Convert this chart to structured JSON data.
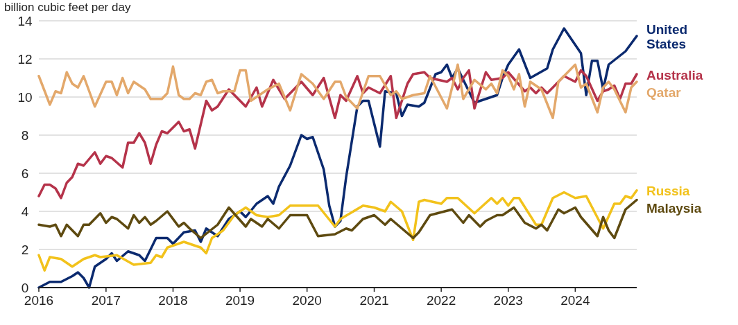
{
  "chart_data": {
    "type": "line",
    "ylabel": "billion cubic feet per day",
    "xlim": [
      "2016-01",
      "2024-12"
    ],
    "xticks": [
      "2016",
      "2017",
      "2018",
      "2019",
      "2020",
      "2021",
      "2022",
      "2023",
      "2024"
    ],
    "ylim": [
      0,
      14
    ],
    "yticks": [
      0,
      2,
      4,
      6,
      8,
      10,
      12,
      14
    ],
    "grid": "y",
    "legend": "right",
    "marker": "none",
    "line_style": "solid",
    "series": [
      {
        "name": "United States",
        "color": "#0b2a6f",
        "x": [
          "2016-01",
          "2016-03",
          "2016-05",
          "2016-07",
          "2016-08",
          "2016-09",
          "2016-10",
          "2016-11",
          "2017-01",
          "2017-02",
          "2017-03",
          "2017-05",
          "2017-07",
          "2017-08",
          "2017-10",
          "2017-12",
          "2018-01",
          "2018-03",
          "2018-05",
          "2018-06",
          "2018-07",
          "2018-09",
          "2018-11",
          "2019-01",
          "2019-02",
          "2019-04",
          "2019-06",
          "2019-07",
          "2019-08",
          "2019-10",
          "2019-12",
          "2020-01",
          "2020-02",
          "2020-04",
          "2020-05",
          "2020-06",
          "2020-07",
          "2020-08",
          "2020-10",
          "2020-11",
          "2020-12",
          "2021-02",
          "2021-03",
          "2021-05",
          "2021-06",
          "2021-07",
          "2021-09",
          "2021-10",
          "2021-12",
          "2022-01",
          "2022-02",
          "2022-03",
          "2022-04",
          "2022-07",
          "2022-11",
          "2022-12",
          "2023-01",
          "2023-03",
          "2023-05",
          "2023-08",
          "2023-09",
          "2023-11",
          "2024-02",
          "2024-03",
          "2024-04",
          "2024-05",
          "2024-06",
          "2024-07",
          "2024-10",
          "2024-12"
        ],
        "values": [
          0,
          0.3,
          0.3,
          0.6,
          0.8,
          0.5,
          0,
          1.1,
          1.5,
          1.8,
          1.4,
          1.9,
          1.7,
          1.4,
          2.6,
          2.6,
          2.3,
          2.9,
          3.0,
          2.4,
          3.1,
          2.7,
          3.6,
          4.0,
          3.7,
          4.4,
          4.8,
          4.4,
          5.3,
          6.4,
          8.0,
          7.8,
          7.9,
          6.2,
          4.3,
          3.2,
          3.5,
          5.8,
          9.5,
          9.8,
          9.8,
          7.4,
          10.3,
          10.2,
          9.0,
          9.6,
          9.5,
          9.7,
          11.2,
          11.3,
          11.7,
          11.0,
          11.5,
          9.7,
          10.1,
          11.0,
          11.7,
          12.5,
          11.0,
          11.5,
          12.5,
          13.6,
          12.3,
          10.1,
          11.9,
          11.9,
          10.4,
          11.7,
          12.4,
          13.2
        ]
      },
      {
        "name": "Australia",
        "color": "#b5334a",
        "x": [
          "2016-01",
          "2016-02",
          "2016-03",
          "2016-04",
          "2016-05",
          "2016-06",
          "2016-07",
          "2016-08",
          "2016-09",
          "2016-11",
          "2016-12",
          "2017-01",
          "2017-02",
          "2017-04",
          "2017-05",
          "2017-06",
          "2017-07",
          "2017-08",
          "2017-09",
          "2017-10",
          "2017-11",
          "2017-12",
          "2018-02",
          "2018-03",
          "2018-04",
          "2018-05",
          "2018-07",
          "2018-08",
          "2018-09",
          "2018-11",
          "2019-02",
          "2019-04",
          "2019-05",
          "2019-07",
          "2019-09",
          "2019-12",
          "2020-02",
          "2020-04",
          "2020-06",
          "2020-07",
          "2020-08",
          "2020-10",
          "2020-11",
          "2020-12",
          "2021-02",
          "2021-04",
          "2021-05",
          "2021-07",
          "2021-08",
          "2021-10",
          "2021-11",
          "2022-02",
          "2022-03",
          "2022-04",
          "2022-05",
          "2022-06",
          "2022-07",
          "2022-09",
          "2022-10",
          "2022-12",
          "2023-01",
          "2023-04",
          "2023-05",
          "2023-06",
          "2023-07",
          "2023-08",
          "2023-09",
          "2023-11",
          "2024-01",
          "2024-02",
          "2024-03",
          "2024-05",
          "2024-06",
          "2024-07",
          "2024-08",
          "2024-09",
          "2024-10",
          "2024-11",
          "2024-12"
        ],
        "values": [
          4.8,
          5.4,
          5.4,
          5.2,
          4.7,
          5.5,
          5.8,
          6.5,
          6.4,
          7.1,
          6.5,
          6.9,
          6.8,
          6.3,
          7.6,
          7.6,
          8.1,
          7.6,
          6.5,
          7.5,
          8.2,
          8.1,
          8.7,
          8.2,
          8.3,
          7.3,
          9.8,
          9.3,
          9.5,
          10.4,
          9.5,
          10.5,
          9.5,
          10.9,
          9.9,
          10.8,
          10.1,
          11.0,
          8.9,
          10.1,
          9.8,
          11.1,
          10.2,
          10.5,
          10.2,
          11.1,
          8.9,
          10.7,
          11.2,
          11.3,
          11.0,
          10.8,
          11.0,
          10.4,
          11.0,
          11.4,
          9.4,
          11.3,
          10.9,
          11.0,
          11.3,
          10.3,
          10.5,
          10.2,
          10.5,
          10.2,
          10.5,
          11.1,
          10.8,
          11.4,
          11.1,
          9.8,
          10.3,
          10.4,
          10.6,
          9.9,
          10.7,
          10.7,
          11.2
        ]
      },
      {
        "name": "Qatar",
        "color": "#e3a86b",
        "x": [
          "2016-01",
          "2016-03",
          "2016-04",
          "2016-05",
          "2016-06",
          "2016-07",
          "2016-08",
          "2016-09",
          "2016-11",
          "2017-01",
          "2017-02",
          "2017-03",
          "2017-04",
          "2017-05",
          "2017-06",
          "2017-08",
          "2017-09",
          "2017-11",
          "2017-12",
          "2018-01",
          "2018-02",
          "2018-03",
          "2018-04",
          "2018-05",
          "2018-06",
          "2018-07",
          "2018-08",
          "2018-09",
          "2018-10",
          "2018-12",
          "2019-01",
          "2019-02",
          "2019-03",
          "2019-06",
          "2019-08",
          "2019-10",
          "2019-12",
          "2020-02",
          "2020-04",
          "2020-06",
          "2020-07",
          "2020-08",
          "2020-10",
          "2020-12",
          "2021-02",
          "2021-04",
          "2021-05",
          "2021-06",
          "2021-08",
          "2021-10",
          "2021-11",
          "2022-02",
          "2022-04",
          "2022-05",
          "2022-07",
          "2022-09",
          "2022-10",
          "2022-11",
          "2022-12",
          "2023-01",
          "2023-02",
          "2023-03",
          "2023-04",
          "2023-05",
          "2023-07",
          "2023-09",
          "2023-10",
          "2024-01",
          "2024-02",
          "2024-03",
          "2024-05",
          "2024-06",
          "2024-07",
          "2024-08",
          "2024-10",
          "2024-11",
          "2024-12"
        ],
        "values": [
          11.1,
          9.6,
          10.3,
          10.2,
          11.3,
          10.7,
          10.5,
          11.1,
          9.5,
          10.8,
          10.8,
          10.1,
          11.0,
          10.2,
          10.8,
          10.4,
          9.9,
          9.9,
          10.2,
          11.6,
          10.1,
          9.9,
          9.9,
          10.2,
          10.1,
          10.8,
          10.9,
          10.2,
          10.3,
          10.3,
          11.4,
          11.4,
          9.8,
          10.4,
          10.7,
          9.3,
          11.2,
          10.7,
          9.9,
          10.8,
          10.8,
          10.0,
          9.4,
          11.1,
          11.1,
          10.1,
          10.3,
          9.9,
          10.1,
          10.2,
          11.1,
          9.4,
          11.7,
          9.9,
          10.9,
          10.4,
          10.7,
          10.2,
          11.4,
          11.1,
          10.4,
          11.2,
          9.5,
          10.8,
          10.4,
          8.9,
          10.8,
          11.7,
          10.5,
          10.7,
          9.2,
          10.5,
          10.8,
          10.4,
          9.2,
          10.5,
          10.8
        ]
      },
      {
        "name": "Russia",
        "color": "#f2c21b",
        "x": [
          "2016-01",
          "2016-02",
          "2016-03",
          "2016-05",
          "2016-07",
          "2016-09",
          "2016-11",
          "2016-12",
          "2017-03",
          "2017-06",
          "2017-09",
          "2017-10",
          "2017-11",
          "2017-12",
          "2018-03",
          "2018-05",
          "2018-06",
          "2018-07",
          "2018-08",
          "2018-10",
          "2018-12",
          "2019-02",
          "2019-04",
          "2019-06",
          "2019-08",
          "2019-10",
          "2020-03",
          "2020-06",
          "2020-07",
          "2020-11",
          "2021-01",
          "2021-03",
          "2021-04",
          "2021-06",
          "2021-08",
          "2021-09",
          "2021-10",
          "2022-01",
          "2022-02",
          "2022-04",
          "2022-07",
          "2022-10",
          "2022-11",
          "2022-12",
          "2023-01",
          "2023-02",
          "2023-03",
          "2023-06",
          "2023-07",
          "2023-09",
          "2023-11",
          "2024-01",
          "2024-03",
          "2024-06",
          "2024-08",
          "2024-09",
          "2024-10",
          "2024-11",
          "2024-12"
        ],
        "values": [
          1.7,
          0.9,
          1.6,
          1.5,
          1.1,
          1.5,
          1.7,
          1.6,
          1.7,
          1.2,
          1.3,
          1.7,
          1.6,
          2.1,
          2.4,
          2.2,
          2.1,
          1.8,
          2.6,
          3.0,
          3.8,
          4.2,
          3.8,
          3.7,
          3.8,
          4.3,
          4.3,
          3.2,
          3.6,
          4.3,
          4.2,
          4.0,
          4.5,
          4.0,
          2.5,
          4.5,
          4.6,
          4.4,
          4.7,
          4.7,
          3.9,
          4.7,
          4.4,
          4.7,
          4.3,
          4.7,
          4.7,
          3.3,
          3.3,
          4.7,
          5.0,
          4.7,
          4.8,
          3.1,
          4.4,
          4.4,
          4.8,
          4.7,
          5.1
        ]
      },
      {
        "name": "Malaysia",
        "color": "#5e4a10",
        "x": [
          "2016-01",
          "2016-03",
          "2016-04",
          "2016-05",
          "2016-06",
          "2016-08",
          "2016-09",
          "2016-10",
          "2016-12",
          "2017-01",
          "2017-02",
          "2017-03",
          "2017-05",
          "2017-06",
          "2017-07",
          "2017-08",
          "2017-09",
          "2017-10",
          "2017-12",
          "2018-02",
          "2018-03",
          "2018-04",
          "2018-06",
          "2018-09",
          "2018-11",
          "2019-02",
          "2019-03",
          "2019-05",
          "2019-06",
          "2019-08",
          "2019-10",
          "2020-01",
          "2020-03",
          "2020-06",
          "2020-08",
          "2020-09",
          "2020-11",
          "2021-01",
          "2021-03",
          "2021-04",
          "2021-06",
          "2021-08",
          "2021-09",
          "2021-11",
          "2022-03",
          "2022-05",
          "2022-06",
          "2022-08",
          "2022-09",
          "2022-11",
          "2022-12",
          "2023-02",
          "2023-04",
          "2023-06",
          "2023-07",
          "2023-08",
          "2023-10",
          "2023-11",
          "2024-01",
          "2024-02",
          "2024-05",
          "2024-06",
          "2024-07",
          "2024-08",
          "2024-10",
          "2024-12"
        ],
        "values": [
          3.3,
          3.2,
          3.3,
          2.7,
          3.3,
          2.7,
          3.3,
          3.3,
          3.9,
          3.4,
          3.7,
          3.6,
          3.1,
          3.8,
          3.4,
          3.7,
          3.3,
          3.5,
          4.0,
          3.2,
          3.4,
          3.1,
          2.6,
          3.3,
          4.2,
          3.2,
          3.6,
          3.2,
          3.6,
          3.1,
          3.8,
          3.8,
          2.7,
          2.8,
          3.1,
          3.0,
          3.6,
          3.8,
          3.3,
          3.6,
          3.1,
          2.6,
          2.9,
          3.8,
          4.1,
          3.4,
          3.8,
          3.2,
          3.5,
          3.8,
          3.8,
          4.2,
          3.4,
          3.1,
          3.3,
          3.0,
          4.1,
          3.9,
          4.2,
          3.7,
          2.7,
          3.7,
          3.0,
          2.6,
          4.1,
          4.6
        ]
      }
    ]
  }
}
